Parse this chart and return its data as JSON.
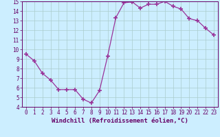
{
  "x": [
    0,
    1,
    2,
    3,
    4,
    5,
    6,
    7,
    8,
    9,
    10,
    11,
    12,
    13,
    14,
    15,
    16,
    17,
    18,
    19,
    20,
    21,
    22,
    23
  ],
  "y": [
    9.5,
    8.8,
    7.5,
    6.8,
    5.8,
    5.8,
    5.8,
    4.8,
    4.4,
    5.7,
    9.3,
    13.3,
    14.85,
    14.95,
    14.3,
    14.7,
    14.7,
    15.0,
    14.5,
    14.2,
    13.2,
    13.0,
    12.2,
    11.5
  ],
  "line_color": "#993399",
  "marker": "+",
  "marker_size": 4,
  "background_color": "#cceeff",
  "grid_color": "#aacccc",
  "xlabel": "Windchill (Refroidissement éolien,°C)",
  "ylabel": "",
  "ylim": [
    4,
    15
  ],
  "xlim": [
    -0.5,
    23.5
  ],
  "yticks": [
    4,
    5,
    6,
    7,
    8,
    9,
    10,
    11,
    12,
    13,
    14,
    15
  ],
  "xticks": [
    0,
    1,
    2,
    3,
    4,
    5,
    6,
    7,
    8,
    9,
    10,
    11,
    12,
    13,
    14,
    15,
    16,
    17,
    18,
    19,
    20,
    21,
    22,
    23
  ],
  "text_color": "#660066",
  "font_family": "monospace",
  "tick_fontsize": 5.5,
  "xlabel_fontsize": 6.5
}
